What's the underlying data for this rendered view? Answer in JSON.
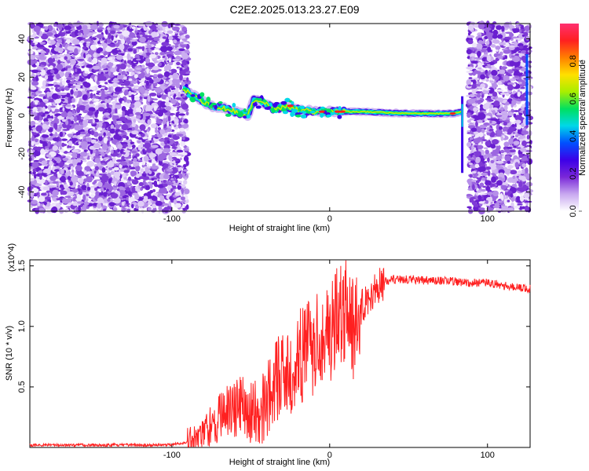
{
  "title": "C2E2.2025.013.23.27.E09",
  "chart_data": [
    {
      "type": "heatmap",
      "xlabel": "Height of straight line (km)",
      "ylabel": "Frequency (Hz)",
      "xlim": [
        -190,
        127
      ],
      "ylim": [
        -50,
        48
      ],
      "xticks": [
        -100,
        0,
        100
      ],
      "yticks": [
        -40,
        -20,
        0,
        20,
        40
      ],
      "colorbar": {
        "label": "Normalized spectral amplitude",
        "range": [
          0,
          1
        ],
        "ticks": [
          "0.0",
          "0.2",
          "0.4",
          "0.6",
          "0.8"
        ],
        "colormap": [
          "#ffffff",
          "#c8a8f0",
          "#7a28d8",
          "#3c00e8",
          "#0050ff",
          "#00d8e8",
          "#00e060",
          "#a8ee00",
          "#ffe000",
          "#ff8000",
          "#ff2020",
          "#ff3070"
        ]
      },
      "noise_regions_km": [
        [
          -190,
          -90
        ],
        [
          88,
          127
        ]
      ],
      "ridge": [
        {
          "x": -93,
          "y": 14
        },
        {
          "x": -88,
          "y": 11
        },
        {
          "x": -82,
          "y": 8
        },
        {
          "x": -75,
          "y": 5
        },
        {
          "x": -68,
          "y": 4
        },
        {
          "x": -60,
          "y": 2
        },
        {
          "x": -52,
          "y": 0
        },
        {
          "x": -48,
          "y": 8
        },
        {
          "x": -42,
          "y": 7
        },
        {
          "x": -35,
          "y": 3
        },
        {
          "x": -28,
          "y": 5
        },
        {
          "x": -20,
          "y": 3
        },
        {
          "x": -10,
          "y": 2
        },
        {
          "x": 0,
          "y": 2
        },
        {
          "x": 20,
          "y": 2
        },
        {
          "x": 50,
          "y": 1
        },
        {
          "x": 78,
          "y": 1
        },
        {
          "x": 84,
          "y": 2
        }
      ]
    },
    {
      "type": "line",
      "xlabel": "Height of straight line (km)",
      "ylabel": "SNR (10 * v/v)",
      "yunit": "(x10^4)",
      "xlim": [
        -190,
        127
      ],
      "ylim": [
        0,
        1.55
      ],
      "xticks": [
        -100,
        0,
        100
      ],
      "yticks": [
        "0.5",
        "1.0",
        "1.5"
      ],
      "color": "#ff2020",
      "series": [
        {
          "x": [
            -190,
            -150,
            -110,
            -95,
            -85,
            -80,
            -75,
            -70,
            -65,
            -60,
            -55,
            -50,
            -45,
            -40,
            -35,
            -30,
            -25,
            -20,
            -15,
            -10,
            -5,
            0,
            5,
            10,
            15,
            20,
            25,
            30,
            35,
            40,
            50,
            60,
            70,
            80,
            90,
            100,
            110,
            120,
            127
          ],
          "y": [
            0.02,
            0.02,
            0.02,
            0.03,
            0.07,
            0.12,
            0.18,
            0.25,
            0.3,
            0.32,
            0.35,
            0.3,
            0.27,
            0.38,
            0.55,
            0.6,
            0.62,
            0.72,
            0.8,
            0.85,
            0.95,
            0.98,
            1.05,
            1.1,
            1.0,
            1.15,
            1.25,
            1.32,
            1.37,
            1.39,
            1.39,
            1.38,
            1.38,
            1.37,
            1.36,
            1.36,
            1.34,
            1.32,
            1.31
          ]
        }
      ]
    }
  ]
}
